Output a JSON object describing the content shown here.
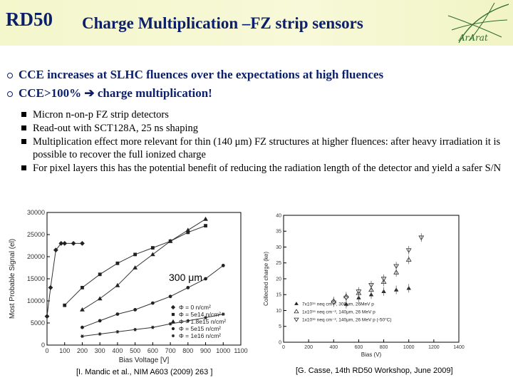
{
  "header": {
    "brand": "RD50",
    "title": "Charge Multiplication –FZ strip sensors",
    "logo_text": "ArArat"
  },
  "top_bullets": [
    "CCE increases at SLHC fluences over the expectations at high fluences",
    "CCE>100%  ➔ charge multiplication!"
  ],
  "sub_bullets": [
    "Micron n-on-p FZ strip detectors",
    "Read-out with SCT128A, 25 ns shaping",
    "Multiplication effect more relevant for thin (140 μm) FZ structures at higher fluences: after heavy irradiation it is possible to recover the full ionized charge",
    "For pixel layers this has the potential benefit of reducing the radiation length of the detector and yield a safer S/N"
  ],
  "overlay_label": "300 μm",
  "captions": {
    "left": "[I. Mandic et al., NIM A603 (2009) 263 ]",
    "right": "[G. Casse, 14th RD50 Workshop, June 2009]"
  },
  "chart_data": [
    {
      "type": "line",
      "xlabel": "Bias Voltage [V]",
      "ylabel": "Most Probable Signal (el)",
      "xlim": [
        0,
        1100
      ],
      "ylim": [
        0,
        30000
      ],
      "x_ticks": [
        0,
        100,
        200,
        300,
        400,
        500,
        600,
        700,
        800,
        900,
        1000,
        1100
      ],
      "y_ticks": [
        0,
        5000,
        10000,
        15000,
        20000,
        25000,
        30000
      ],
      "legend_position": "bottom-right",
      "series": [
        {
          "name": "Φ = 0 n/cm²",
          "marker": "diamond",
          "points": [
            [
              0,
              6500
            ],
            [
              20,
              13000
            ],
            [
              50,
              21500
            ],
            [
              80,
              23000
            ],
            [
              100,
              23000
            ],
            [
              150,
              23000
            ],
            [
              200,
              23000
            ]
          ]
        },
        {
          "name": "Φ = 5e14 n/cm²",
          "marker": "square",
          "points": [
            [
              100,
              9000
            ],
            [
              200,
              13000
            ],
            [
              300,
              16000
            ],
            [
              400,
              18500
            ],
            [
              500,
              20500
            ],
            [
              600,
              22000
            ],
            [
              700,
              23500
            ],
            [
              800,
              25500
            ],
            [
              900,
              27000
            ]
          ]
        },
        {
          "name": "Φ = 1.8e15 n/cm²",
          "marker": "triangle",
          "points": [
            [
              200,
              8000
            ],
            [
              300,
              10500
            ],
            [
              400,
              13500
            ],
            [
              500,
              17500
            ],
            [
              600,
              20500
            ],
            [
              700,
              23500
            ],
            [
              800,
              26000
            ],
            [
              900,
              28500
            ]
          ]
        },
        {
          "name": "Φ = 5e15 n/cm²",
          "marker": "circle",
          "points": [
            [
              200,
              4000
            ],
            [
              300,
              5500
            ],
            [
              400,
              7000
            ],
            [
              500,
              8000
            ],
            [
              600,
              9500
            ],
            [
              700,
              11000
            ],
            [
              800,
              13000
            ],
            [
              900,
              15000
            ],
            [
              1000,
              18000
            ]
          ]
        },
        {
          "name": "Φ = 1e16 n/cm²",
          "marker": "star",
          "points": [
            [
              200,
              2000
            ],
            [
              300,
              2500
            ],
            [
              400,
              3000
            ],
            [
              500,
              3500
            ],
            [
              600,
              4000
            ],
            [
              700,
              4800
            ],
            [
              800,
              5500
            ],
            [
              900,
              6200
            ],
            [
              1000,
              7000
            ]
          ]
        }
      ]
    },
    {
      "type": "scatter",
      "xlabel": "Bias (V)",
      "ylabel": "Collected charge (ke)",
      "xlim": [
        0,
        1400
      ],
      "x_ticks": [
        0,
        200,
        400,
        600,
        800,
        1000,
        1200,
        1400
      ],
      "y_ticks": [
        0,
        5,
        10,
        15,
        20,
        25,
        30,
        35,
        40
      ],
      "ylim": [
        0,
        40
      ],
      "legend_position": "bottom-left",
      "series": [
        {
          "name": "7x10¹⁵ neq cm⁻², 300μm, 26MeV p",
          "marker": "filled-triangle",
          "points": [
            [
              500,
              12
            ],
            [
              600,
              14
            ],
            [
              700,
              15
            ],
            [
              800,
              16
            ],
            [
              900,
              16.5
            ],
            [
              1000,
              17
            ]
          ]
        },
        {
          "name": "1x10¹⁵ neq cm⁻², 140μm, 26 MeV p",
          "marker": "open-triangle",
          "points": [
            [
              400,
              13
            ],
            [
              500,
              14.5
            ],
            [
              600,
              15.5
            ],
            [
              700,
              16.5
            ],
            [
              800,
              19
            ],
            [
              900,
              22
            ],
            [
              1000,
              26
            ]
          ]
        },
        {
          "name": "1x10¹⁶ neq cm⁻², 140μm, 26 MeV p (-50°C)",
          "marker": "open-down-triangle",
          "points": [
            [
              400,
              12.5
            ],
            [
              500,
              14
            ],
            [
              600,
              16
            ],
            [
              700,
              18
            ],
            [
              800,
              20
            ],
            [
              900,
              24
            ],
            [
              1000,
              29
            ],
            [
              1100,
              33
            ]
          ]
        }
      ]
    }
  ]
}
